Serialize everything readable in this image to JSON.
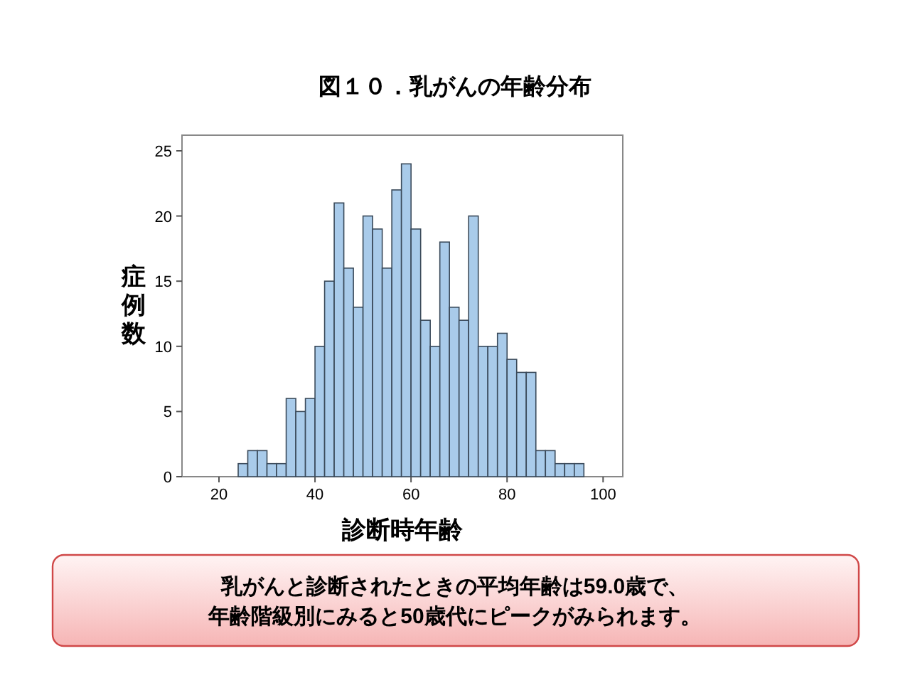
{
  "chart_data": {
    "type": "histogram",
    "title": "図１０．乳がんの年齢分布",
    "xlabel": "診断時年齢",
    "ylabel": "症例数",
    "bins": [
      24,
      26,
      28,
      30,
      32,
      34,
      36,
      38,
      40,
      42,
      44,
      46,
      48,
      50,
      52,
      54,
      56,
      58,
      60,
      62,
      64,
      66,
      68,
      70,
      72,
      74,
      76,
      78,
      80,
      82,
      84,
      86,
      88,
      90,
      92,
      94,
      96
    ],
    "values": [
      1,
      2,
      2,
      1,
      1,
      6,
      5,
      6,
      10,
      15,
      21,
      16,
      13,
      20,
      19,
      16,
      22,
      24,
      19,
      12,
      10,
      18,
      13,
      12,
      20,
      10,
      10,
      11,
      9,
      8,
      8,
      2,
      2,
      1,
      1,
      1
    ],
    "color": "#a9cbea",
    "xlim": [
      12.3,
      104.1
    ],
    "xticks": [
      20,
      40,
      60,
      80,
      100
    ],
    "ylim": [
      0,
      26.2
    ],
    "yticks": [
      0,
      5,
      10,
      15,
      20,
      25
    ],
    "annotations": [
      "乳がんと診断されたときの平均年齢は59.0歳で、",
      "年齢階級別にみると50歳代にピークがみられます。"
    ]
  }
}
